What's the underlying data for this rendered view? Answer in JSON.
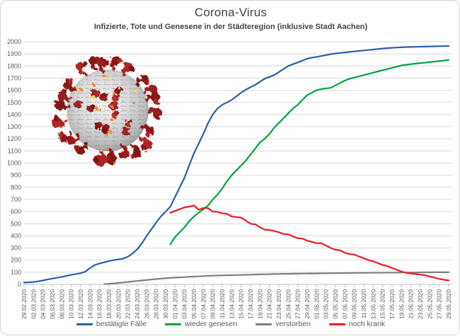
{
  "window": {
    "background": "#ffffff",
    "frame_border_color": "#d4d4d4"
  },
  "chart_data": {
    "type": "line",
    "title": "Corona-Virus",
    "subtitle": "Infizierte, Tote und Genesene in der Städteregion (inklusive Stadt Aachen)",
    "grid": "horizontal",
    "grid_color": "#d9d9d9",
    "axis_color": "#bfbfbf",
    "tick_label_color": "#595959",
    "legend_position": "bottom",
    "ylim": [
      0,
      2000
    ],
    "y_step": 100,
    "y_ticks": [
      0,
      100,
      200,
      300,
      400,
      500,
      600,
      700,
      800,
      900,
      1000,
      1100,
      1200,
      1300,
      1400,
      1500,
      1600,
      1700,
      1800,
      1900,
      2000
    ],
    "days_total": 91,
    "x_tick_every_days": 2,
    "x_tick_labels": [
      "29.02.2020",
      "02.03.2020",
      "04.03.2020",
      "06.03.2020",
      "08.03.2020",
      "10.03.2020",
      "12.03.2020",
      "14.03.2020",
      "16.03.2020",
      "18.03.2020",
      "20.03.2020",
      "22.03.2020",
      "24.03.2020",
      "26.03.2020",
      "28.03.2020",
      "30.03.2020",
      "01.04.2020",
      "03.04.2020",
      "05.04.2020",
      "07.04.2020",
      "09.04.2020",
      "11.04.2020",
      "13.04.2020",
      "15.04.2020",
      "17.04.2020",
      "19.04.2020",
      "21.04.2020",
      "23.04.2020",
      "25.04.2020",
      "27.04.2020",
      "29.04.2020",
      "01.05.2020",
      "03.05.2020",
      "05.05.2020",
      "07.05.2020",
      "09.05.2020",
      "11.05.2020",
      "13.05.2020",
      "15.05.2020",
      "17.05.2020",
      "19.05.2020",
      "21.05.2020",
      "23.05.2020",
      "25.05.2020",
      "27.05.2020",
      "29.05.2020"
    ],
    "series": [
      {
        "key": "bestaetigte-faelle",
        "name": "bestätigte Fälle",
        "color": "#2A5DB0",
        "start_day": 0,
        "values": [
          15,
          17,
          20,
          25,
          32,
          40,
          48,
          55,
          62,
          70,
          78,
          85,
          92,
          105,
          135,
          160,
          172,
          182,
          192,
          200,
          206,
          212,
          228,
          255,
          290,
          340,
          400,
          455,
          510,
          560,
          600,
          640,
          720,
          800,
          880,
          980,
          1080,
          1160,
          1240,
          1330,
          1400,
          1450,
          1480,
          1500,
          1520,
          1550,
          1580,
          1605,
          1625,
          1645,
          1670,
          1695,
          1710,
          1725,
          1750,
          1775,
          1800,
          1815,
          1830,
          1845,
          1860,
          1868,
          1875,
          1882,
          1890,
          1898,
          1903,
          1908,
          1912,
          1916,
          1920,
          1924,
          1928,
          1932,
          1936,
          1940,
          1944,
          1947,
          1950,
          1952,
          1954,
          1956,
          1957,
          1958,
          1959,
          1960,
          1961,
          1962,
          1963,
          1964,
          1965
        ]
      },
      {
        "key": "wieder-genesen",
        "name": "wieder genesen",
        "color": "#00A33C",
        "start_day": 31,
        "values": [
          330,
          390,
          430,
          470,
          520,
          560,
          590,
          620,
          650,
          700,
          740,
          790,
          850,
          900,
          940,
          980,
          1020,
          1070,
          1120,
          1170,
          1200,
          1240,
          1290,
          1330,
          1370,
          1410,
          1450,
          1480,
          1520,
          1560,
          1580,
          1600,
          1610,
          1615,
          1620,
          1640,
          1660,
          1680,
          1695,
          1705,
          1715,
          1725,
          1735,
          1745,
          1755,
          1765,
          1775,
          1785,
          1795,
          1805,
          1810,
          1815,
          1820,
          1824,
          1828,
          1832,
          1836,
          1840,
          1845,
          1850
        ]
      },
      {
        "key": "verstorben",
        "name": "verstorben",
        "color": "#7F7F7F",
        "start_day": 17,
        "values": [
          2,
          5,
          8,
          12,
          16,
          20,
          24,
          28,
          32,
          36,
          40,
          44,
          47,
          50,
          53,
          56,
          58,
          60,
          62,
          64,
          66,
          68,
          70,
          72,
          73,
          74,
          75,
          76,
          77,
          78,
          79,
          80,
          81,
          82,
          83,
          84,
          85,
          86,
          87,
          87,
          88,
          88,
          89,
          89,
          90,
          90,
          91,
          91,
          92,
          92,
          93,
          93,
          94,
          94,
          95,
          95,
          95,
          96,
          96,
          96,
          97,
          97,
          97,
          98,
          98,
          98,
          98,
          99,
          99,
          99,
          100,
          100,
          100,
          100
        ]
      },
      {
        "key": "noch-krank",
        "name": "noch krank",
        "color": "#EC1C24",
        "start_day": 31,
        "values": [
          590,
          605,
          620,
          635,
          640,
          650,
          615,
          630,
          628,
          600,
          598,
          585,
          582,
          560,
          555,
          550,
          525,
          500,
          495,
          470,
          450,
          448,
          440,
          430,
          415,
          412,
          395,
          380,
          378,
          360,
          350,
          340,
          338,
          320,
          300,
          285,
          280,
          260,
          250,
          245,
          230,
          215,
          200,
          190,
          175,
          160,
          150,
          135,
          120,
          105,
          95,
          90,
          85,
          80,
          75,
          65,
          55,
          45,
          38,
          32
        ]
      }
    ],
    "decoration": {
      "image": "coronavirus-illustration"
    }
  }
}
